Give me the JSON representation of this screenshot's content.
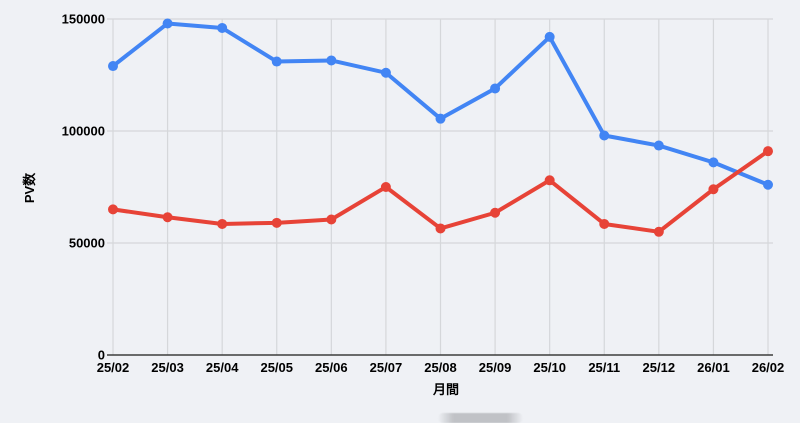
{
  "chart_data": {
    "type": "line",
    "title": "",
    "xlabel": "月間",
    "ylabel": "PV数",
    "categories": [
      "25/02",
      "25/03",
      "25/04",
      "25/05",
      "25/06",
      "25/07",
      "25/08",
      "25/09",
      "25/10",
      "25/11",
      "25/12",
      "26/01",
      "26/02"
    ],
    "series": [
      {
        "name": "blue-series",
        "color": "#4285f4",
        "values": [
          129000,
          148000,
          146000,
          131000,
          131500,
          126000,
          105500,
          119000,
          142000,
          98000,
          93500,
          86000,
          76000
        ]
      },
      {
        "name": "red-series",
        "color": "#e74337",
        "values": [
          65000,
          61500,
          58500,
          59000,
          60500,
          75000,
          56500,
          63500,
          78000,
          58500,
          55000,
          74000,
          91000
        ]
      }
    ],
    "ylim": [
      0,
      150000
    ],
    "yticks": [
      0,
      50000,
      100000,
      150000
    ],
    "grid": true,
    "legend": "none"
  },
  "colors": {
    "background": "#eff1f5",
    "gridline": "#d5d7da",
    "axis_line": "#3d3d3d",
    "tick_text": "#000000"
  }
}
